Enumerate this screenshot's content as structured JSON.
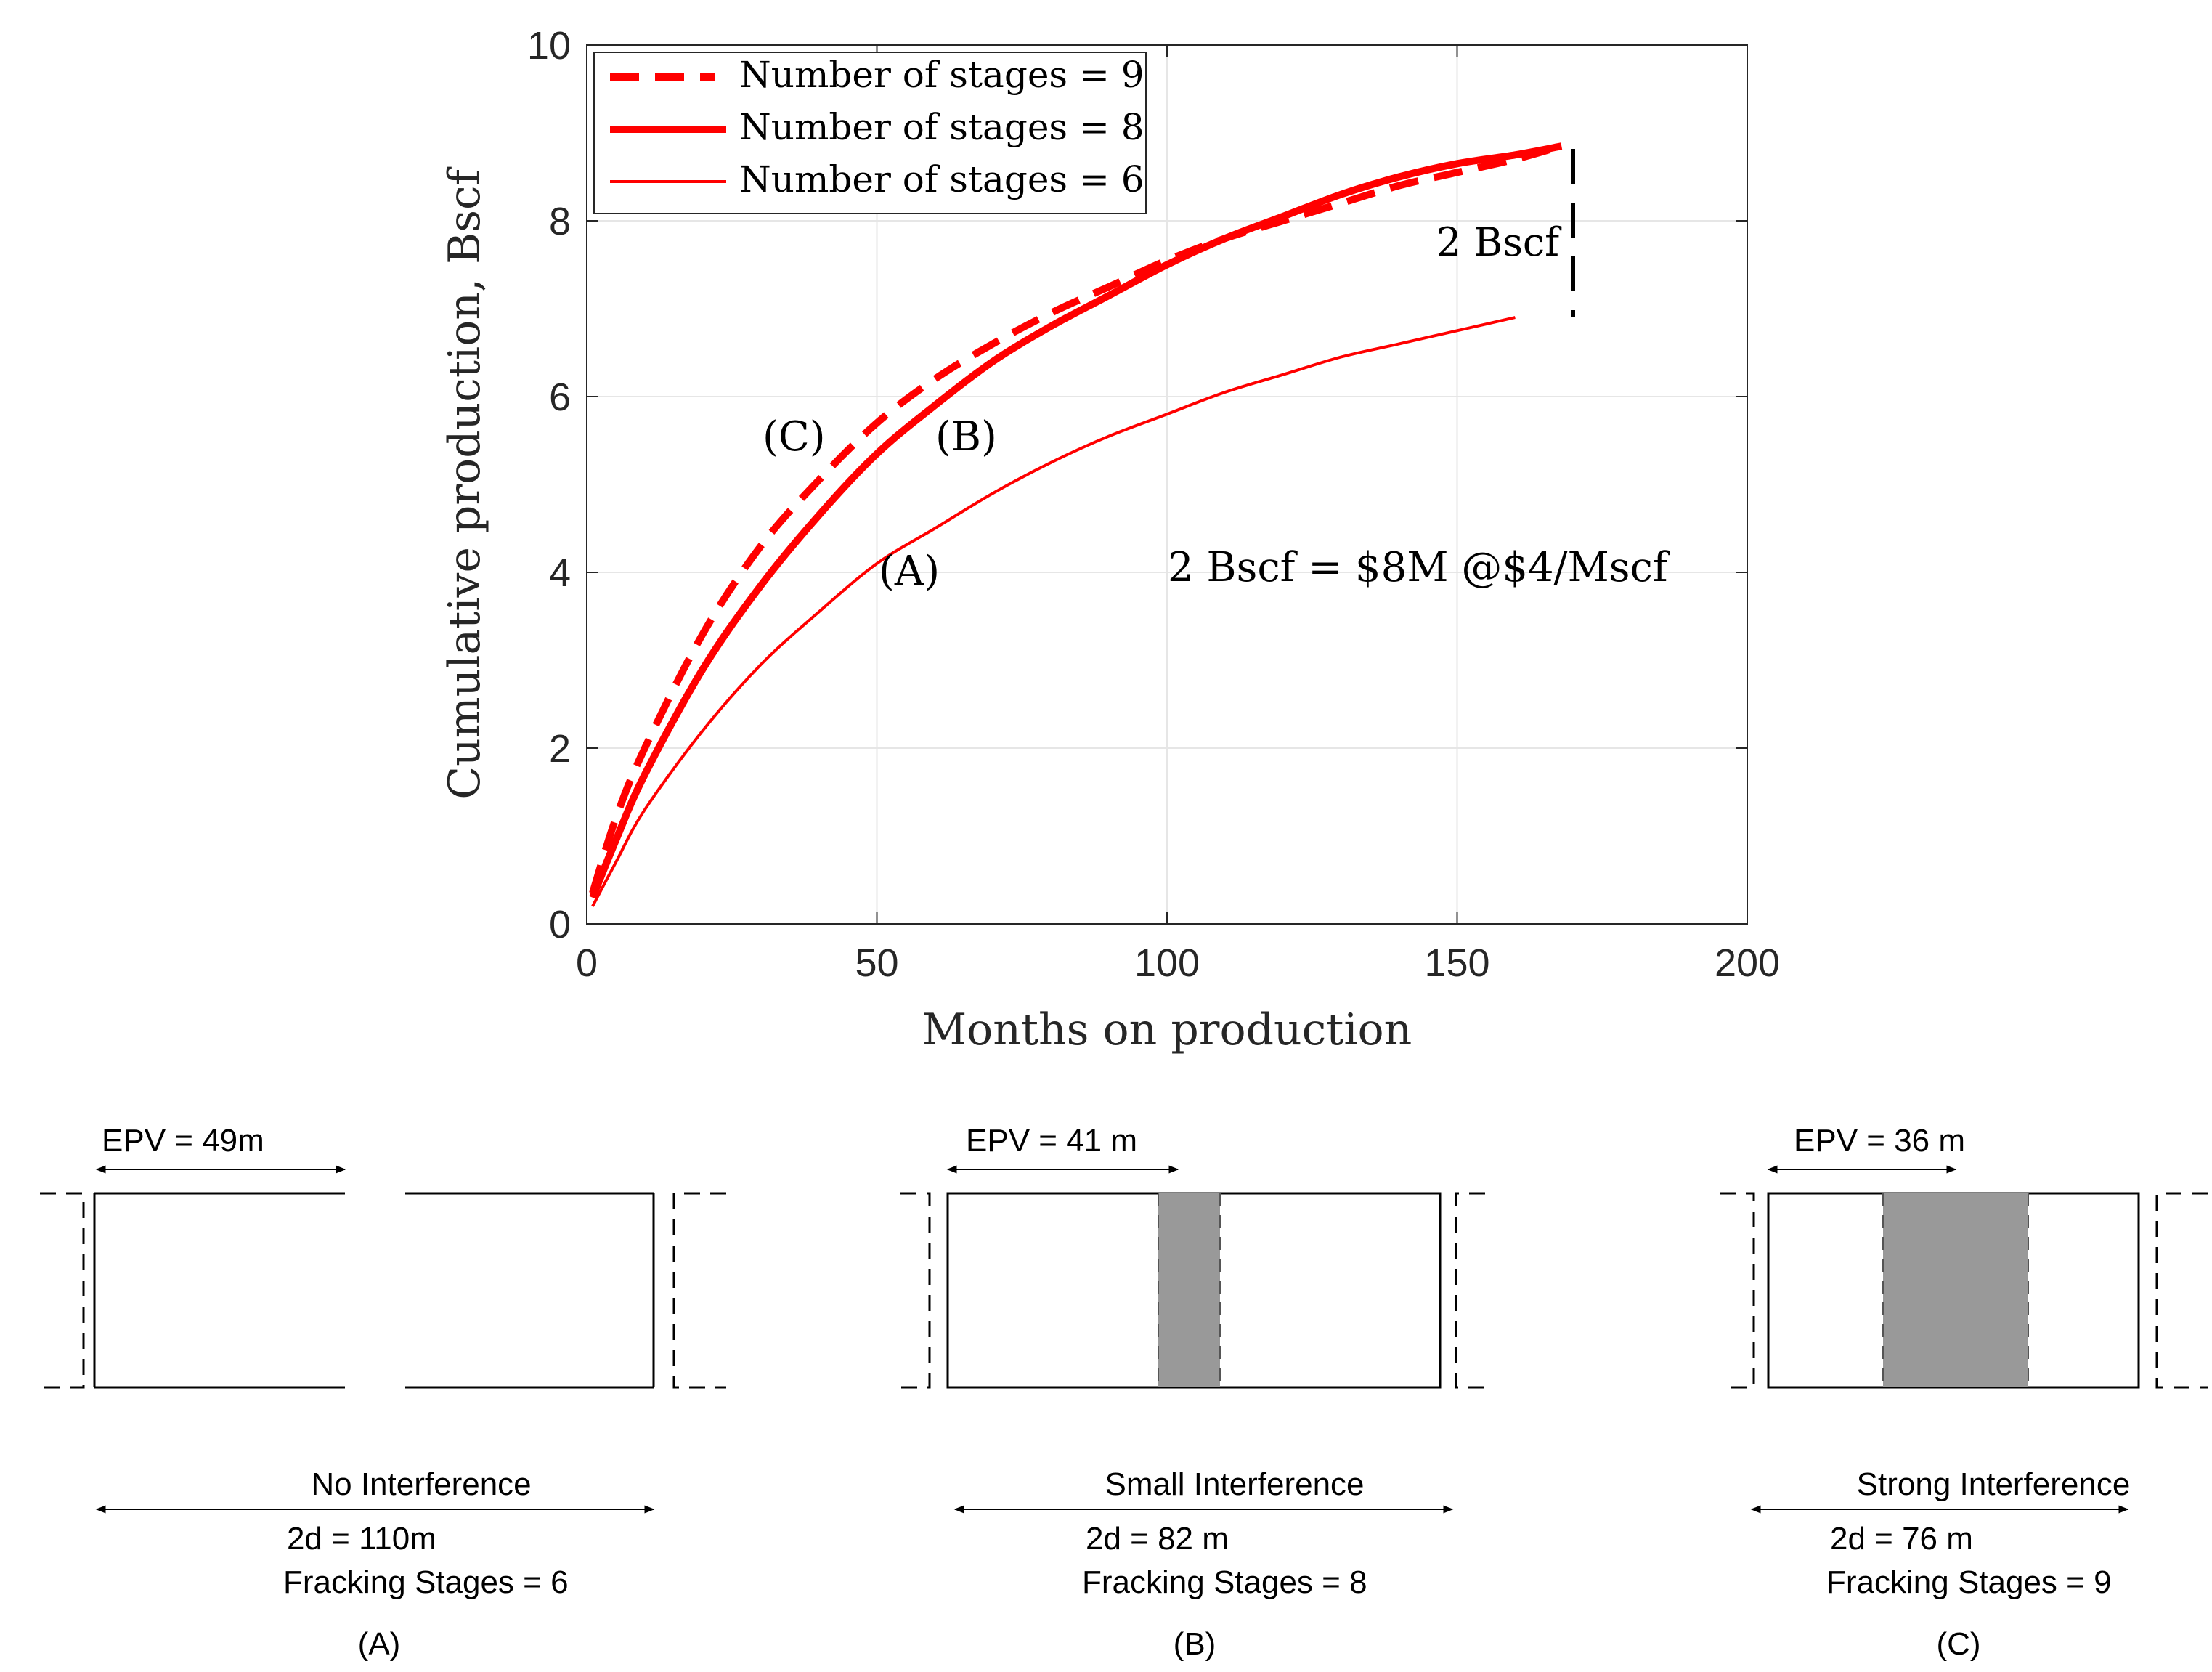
{
  "chart_data": {
    "type": "line",
    "xlabel": "Months on production",
    "ylabel": "Cumulative production, Bscf",
    "xlim": [
      0,
      200
    ],
    "ylim": [
      0,
      10
    ],
    "xticks": [
      0,
      50,
      100,
      150,
      200
    ],
    "yticks": [
      0,
      2,
      4,
      6,
      8,
      10
    ],
    "grid": true,
    "legend_position": "top-left",
    "series": [
      {
        "name": "Number of stages = 9",
        "style": "dashed-thick",
        "color": "#ff0000",
        "x": [
          1,
          5,
          10,
          20,
          30,
          40,
          50,
          60,
          70,
          80,
          90,
          100,
          110,
          120,
          130,
          140,
          150,
          160,
          168
        ],
        "y": [
          0.35,
          1.2,
          2.0,
          3.3,
          4.3,
          5.05,
          5.7,
          6.2,
          6.6,
          6.95,
          7.25,
          7.55,
          7.8,
          8.0,
          8.2,
          8.4,
          8.55,
          8.7,
          8.85
        ]
      },
      {
        "name": "Number of stages = 8",
        "style": "solid-thick",
        "color": "#ff0000",
        "x": [
          1,
          5,
          10,
          20,
          30,
          40,
          50,
          60,
          70,
          80,
          90,
          100,
          110,
          120,
          130,
          140,
          150,
          160,
          168
        ],
        "y": [
          0.3,
          0.95,
          1.7,
          2.9,
          3.85,
          4.65,
          5.35,
          5.9,
          6.4,
          6.8,
          7.15,
          7.5,
          7.8,
          8.05,
          8.3,
          8.5,
          8.65,
          8.75,
          8.85
        ]
      },
      {
        "name": "Number of stages = 6",
        "style": "solid-thin",
        "color": "#ff0000",
        "x": [
          1,
          5,
          10,
          20,
          30,
          40,
          50,
          60,
          70,
          80,
          90,
          100,
          110,
          120,
          130,
          140,
          150,
          160
        ],
        "y": [
          0.2,
          0.7,
          1.3,
          2.2,
          2.95,
          3.55,
          4.1,
          4.5,
          4.9,
          5.25,
          5.55,
          5.8,
          6.05,
          6.25,
          6.45,
          6.6,
          6.75,
          6.9
        ]
      }
    ],
    "annotations": {
      "label_c": "(C)",
      "label_b": "(B)",
      "label_a": "(A)",
      "gap": "2 Bscf",
      "value_note": "2 Bscf = $8M @$4/Mscf"
    }
  },
  "diagrams": [
    {
      "epv": "EPV = 49m",
      "title": "No Interference",
      "two_d": "2d = 110m",
      "stages": "Fracking Stages = 6",
      "caption": "(A)",
      "overlap_fraction": 0
    },
    {
      "epv": "EPV = 41 m",
      "title": "Small Interference",
      "two_d": "2d = 82 m",
      "stages": "Fracking Stages = 8",
      "caption": "(B)",
      "overlap_fraction": 0.13
    },
    {
      "epv": "EPV = 36 m",
      "title": "Strong Interference",
      "two_d": "2d = 76 m",
      "stages": "Fracking Stages = 9",
      "caption": "(C)",
      "overlap_fraction": 0.39
    }
  ],
  "colors": {
    "series": "#ff0000",
    "overlap": "#999999",
    "grid": "#e6e6e6"
  }
}
